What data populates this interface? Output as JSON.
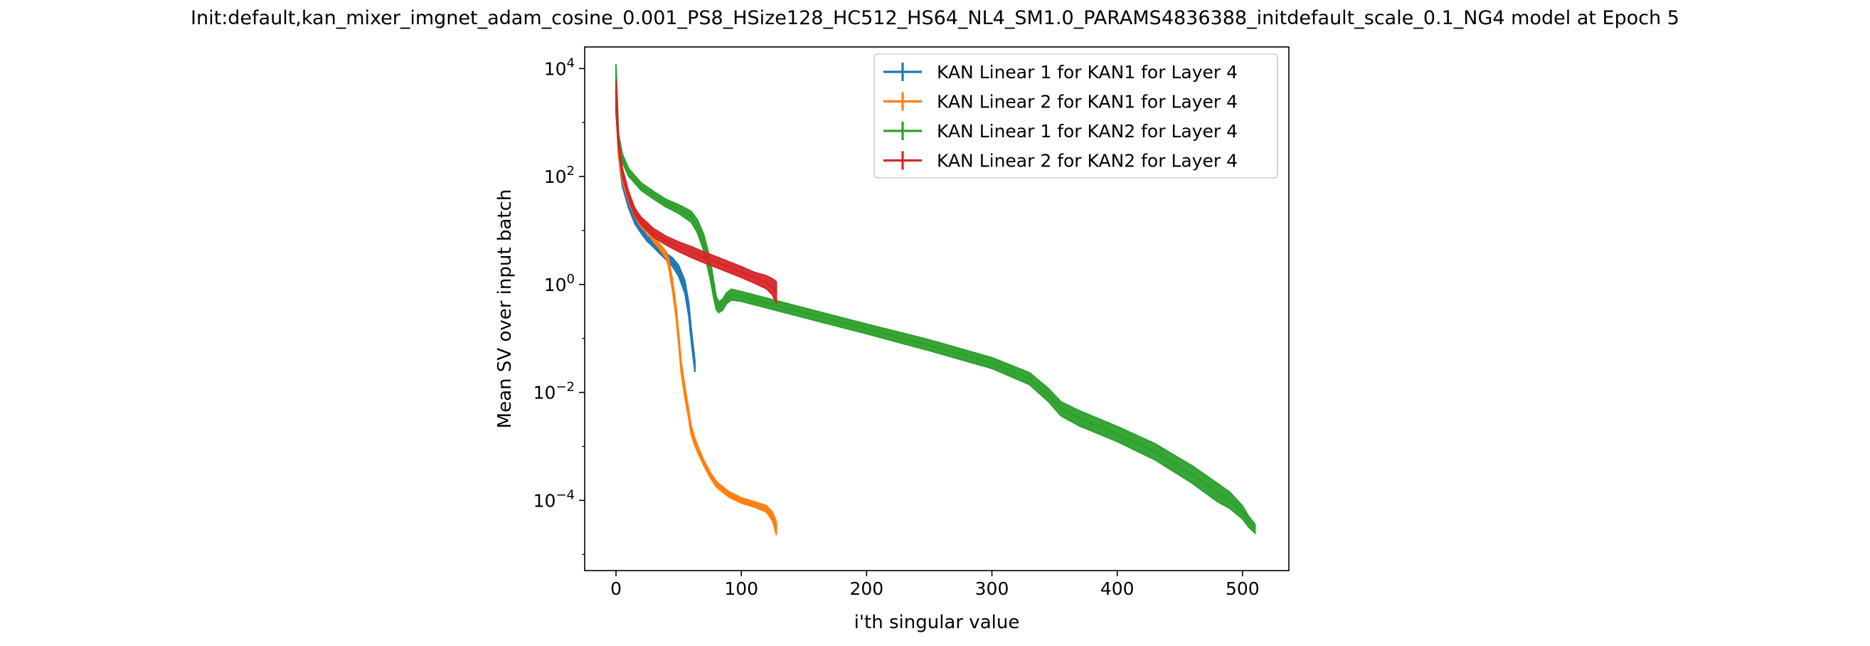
{
  "chart_data": {
    "type": "line",
    "title": "Init:default,kan_mixer_imgnet_adam_cosine_0.001_PS8_HSize128_HC512_HS64_NL4_SM1.0_PARAMS4836388_initdefault_scale_0.1_NG4 model at Epoch 5",
    "xlabel": "i'th singular value",
    "ylabel": "Mean SV over input batch",
    "xlim": [
      -25,
      537
    ],
    "ylim_log10": [
      -5.3,
      4.4
    ],
    "y_scale": "log",
    "grid": false,
    "legend_placement": "top-right",
    "x_ticks": [
      {
        "value": 0,
        "label": "0"
      },
      {
        "value": 100,
        "label": "100"
      },
      {
        "value": 200,
        "label": "200"
      },
      {
        "value": 300,
        "label": "300"
      },
      {
        "value": 400,
        "label": "400"
      },
      {
        "value": 500,
        "label": "500"
      }
    ],
    "y_ticks": [
      {
        "value": 10000,
        "base": "10",
        "exp": "4"
      },
      {
        "value": 100,
        "base": "10",
        "exp": "2"
      },
      {
        "value": 1,
        "base": "10",
        "exp": "0"
      },
      {
        "value": 0.01,
        "base": "10",
        "exp": "−2"
      },
      {
        "value": 0.0001,
        "base": "10",
        "exp": "−4"
      }
    ],
    "series": [
      {
        "name": "KAN Linear 1 for KAN1 for Layer 4",
        "color": "#1f77b4",
        "x": [
          0,
          2,
          5,
          10,
          15,
          20,
          25,
          30,
          35,
          40,
          45,
          50,
          55,
          58,
          60,
          63
        ],
        "y": [
          4000,
          300,
          80,
          30,
          15,
          10,
          7,
          5.5,
          4.2,
          3.3,
          2.6,
          1.8,
          0.9,
          0.35,
          0.12,
          0.03
        ],
        "err_log10": [
          0.3,
          0.1,
          0.08,
          0.06,
          0.05,
          0.05,
          0.05,
          0.05,
          0.05,
          0.06,
          0.08,
          0.1,
          0.12,
          0.12,
          0.12,
          0.1
        ]
      },
      {
        "name": "KAN Linear 2 for KAN1 for Layer 4",
        "color": "#ff7f0e",
        "x": [
          0,
          2,
          5,
          10,
          15,
          20,
          25,
          30,
          35,
          40,
          42,
          45,
          48,
          50,
          52,
          55,
          58,
          60,
          63,
          66,
          70,
          75,
          80,
          85,
          90,
          100,
          110,
          120,
          125,
          128
        ],
        "y": [
          4000,
          300,
          100,
          40,
          20,
          13,
          10,
          7,
          5,
          3.5,
          2.5,
          1.0,
          0.3,
          0.1,
          0.03,
          0.01,
          0.004,
          0.002,
          0.0012,
          0.0008,
          0.0005,
          0.0003,
          0.0002,
          0.00016,
          0.00013,
          0.0001,
          8.5e-05,
          7e-05,
          5e-05,
          3e-05
        ],
        "err_log10": [
          0.3,
          0.1,
          0.08,
          0.06,
          0.05,
          0.05,
          0.05,
          0.05,
          0.05,
          0.06,
          0.08,
          0.1,
          0.1,
          0.1,
          0.1,
          0.1,
          0.08,
          0.08,
          0.07,
          0.06,
          0.05,
          0.05,
          0.05,
          0.05,
          0.05,
          0.05,
          0.05,
          0.06,
          0.08,
          0.12
        ]
      },
      {
        "name": "KAN Linear 1 for KAN2 for Layer 4",
        "color": "#2ca02c",
        "x": [
          0,
          2,
          5,
          10,
          20,
          30,
          40,
          50,
          60,
          65,
          70,
          75,
          78,
          80,
          82,
          85,
          88,
          92,
          100,
          150,
          200,
          250,
          300,
          330,
          345,
          355,
          370,
          400,
          430,
          460,
          480,
          490,
          500,
          505,
          510
        ],
        "y": [
          6000,
          500,
          220,
          120,
          65,
          45,
          32,
          25,
          18,
          12,
          6,
          2,
          0.8,
          0.45,
          0.38,
          0.42,
          0.55,
          0.65,
          0.6,
          0.3,
          0.15,
          0.075,
          0.035,
          0.018,
          0.009,
          0.005,
          0.0033,
          0.0017,
          0.0008,
          0.0003,
          0.00014,
          0.0001,
          6e-05,
          4e-05,
          3e-05
        ],
        "err_log10": [
          0.3,
          0.1,
          0.08,
          0.07,
          0.07,
          0.07,
          0.07,
          0.08,
          0.1,
          0.12,
          0.15,
          0.18,
          0.15,
          0.12,
          0.1,
          0.1,
          0.1,
          0.1,
          0.09,
          0.09,
          0.09,
          0.1,
          0.1,
          0.11,
          0.12,
          0.13,
          0.14,
          0.14,
          0.15,
          0.16,
          0.17,
          0.15,
          0.12,
          0.1,
          0.08
        ]
      },
      {
        "name": "KAN Linear 2 for KAN2 for Layer 4",
        "color": "#d62728",
        "x": [
          0,
          2,
          5,
          10,
          15,
          20,
          30,
          40,
          50,
          60,
          70,
          80,
          90,
          100,
          110,
          120,
          125,
          128
        ],
        "y": [
          3000,
          400,
          120,
          45,
          22,
          15,
          9,
          6.5,
          5,
          4,
          3.2,
          2.6,
          2.1,
          1.7,
          1.35,
          1.1,
          0.9,
          0.7
        ],
        "err_log10": [
          0.3,
          0.1,
          0.08,
          0.07,
          0.07,
          0.07,
          0.08,
          0.08,
          0.09,
          0.1,
          0.1,
          0.1,
          0.1,
          0.1,
          0.1,
          0.12,
          0.15,
          0.2
        ]
      }
    ]
  }
}
